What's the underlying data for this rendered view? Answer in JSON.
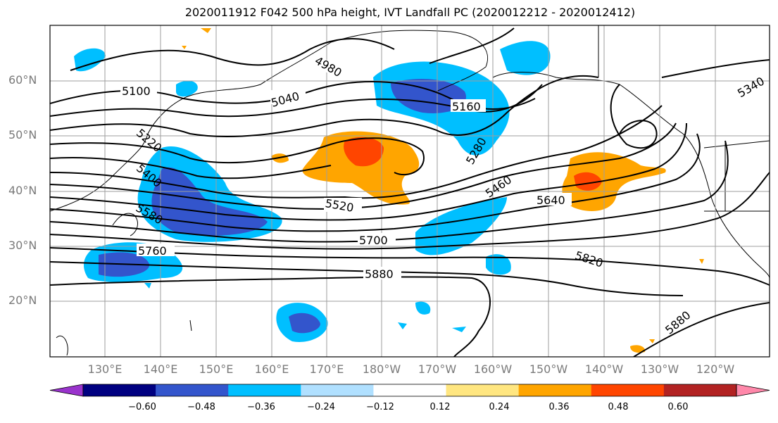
{
  "title": "2020011912 F042 500 hPa height, IVT Landfall PC (2020012212 - 2020012412)",
  "lat_labels": [
    "60°N",
    "50°N",
    "40°N",
    "30°N",
    "20°N"
  ],
  "lon_labels": [
    "130°E",
    "140°E",
    "150°E",
    "160°E",
    "170°E",
    "180°W",
    "170°W",
    "160°W",
    "150°W",
    "140°W",
    "130°W",
    "120°W"
  ],
  "contour_labels": [
    "4980",
    "5040",
    "5100",
    "5160",
    "5220",
    "5280",
    "5340",
    "5400",
    "5460",
    "5520",
    "5580",
    "5640",
    "5700",
    "5760",
    "5820",
    "5880",
    "5880"
  ],
  "colorbar": {
    "ticks": [
      "−0.60",
      "−0.48",
      "−0.36",
      "−0.24",
      "−0.12",
      "0.12",
      "0.24",
      "0.36",
      "0.48",
      "0.60"
    ],
    "colors": [
      "#9933cc",
      "#000080",
      "#3355cc",
      "#00bfff",
      "#b0e0ff",
      "#ffffff",
      "#ffe680",
      "#ffa500",
      "#ff4500",
      "#b22222",
      "#ff88aa"
    ]
  },
  "colors": {
    "negative_strong": "#3355cc",
    "negative_mid": "#00bfff",
    "positive_mid": "#ffa500",
    "positive_strong": "#ff4500",
    "contour": "#000000",
    "grid": "#9e9e9e"
  }
}
